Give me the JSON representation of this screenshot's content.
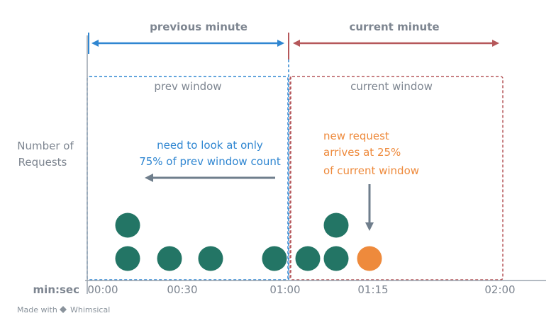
{
  "timeline": {
    "previous_minute_label": "previous minute",
    "current_minute_label": "current minute"
  },
  "windows": {
    "prev_label": "prev window",
    "current_label": "current window"
  },
  "y_axis_label": [
    "Number of",
    "Requests"
  ],
  "annotations": {
    "prev_note": [
      "need to look at only",
      "75% of prev window count"
    ],
    "new_request_note": [
      "new request",
      "arrives at 25%",
      "of current window"
    ]
  },
  "x_axis": {
    "unit_label": "min:sec",
    "ticks": [
      "00:00",
      "00:30",
      "01:00",
      "01:15",
      "02:00"
    ]
  },
  "footer": {
    "made_with": "Made with",
    "brand": "Whimsical"
  },
  "colors": {
    "blue": "#2f86d1",
    "red": "#b5575a",
    "green": "#237565",
    "orange": "#ee8a3c",
    "gray_arrow": "#6f7e8c",
    "axis": "#9aa3ad"
  }
}
